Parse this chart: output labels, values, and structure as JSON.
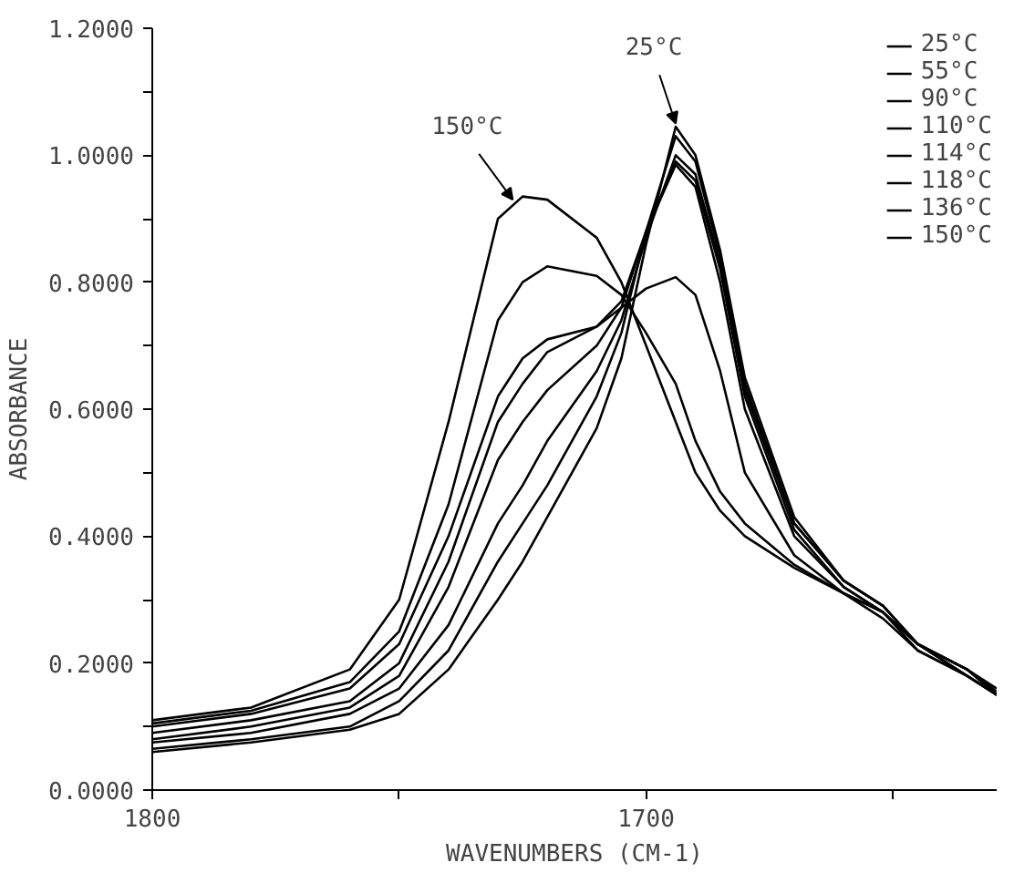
{
  "chart_data": {
    "type": "line",
    "xlabel": "WAVENUMBERS (CM-1)",
    "ylabel": "ABSORBANCE",
    "x": [
      1800,
      1780,
      1760,
      1750,
      1740,
      1730,
      1725,
      1720,
      1710,
      1705,
      1700,
      1694,
      1690,
      1685,
      1680,
      1670,
      1660,
      1652,
      1645,
      1635,
      1629
    ],
    "series": [
      {
        "name": "25°C",
        "color": "#000000",
        "values": [
          0.06,
          0.075,
          0.095,
          0.12,
          0.19,
          0.3,
          0.36,
          0.43,
          0.57,
          0.68,
          0.86,
          1.045,
          1.0,
          0.85,
          0.65,
          0.43,
          0.33,
          0.29,
          0.23,
          0.18,
          0.15
        ]
      },
      {
        "name": "55°C",
        "color": "#000000",
        "values": [
          0.065,
          0.08,
          0.1,
          0.14,
          0.22,
          0.36,
          0.42,
          0.48,
          0.62,
          0.72,
          0.88,
          1.03,
          0.99,
          0.84,
          0.64,
          0.42,
          0.33,
          0.29,
          0.23,
          0.19,
          0.15
        ]
      },
      {
        "name": "90°C",
        "color": "#000000",
        "values": [
          0.075,
          0.09,
          0.12,
          0.16,
          0.26,
          0.42,
          0.48,
          0.55,
          0.66,
          0.74,
          0.87,
          1.0,
          0.97,
          0.83,
          0.63,
          0.42,
          0.33,
          0.29,
          0.23,
          0.19,
          0.15
        ]
      },
      {
        "name": "110°C",
        "color": "#000000",
        "values": [
          0.08,
          0.1,
          0.13,
          0.18,
          0.32,
          0.52,
          0.58,
          0.63,
          0.7,
          0.76,
          0.88,
          0.99,
          0.96,
          0.82,
          0.62,
          0.41,
          0.32,
          0.28,
          0.22,
          0.18,
          0.15
        ]
      },
      {
        "name": "114°C",
        "color": "#000000",
        "values": [
          0.09,
          0.11,
          0.14,
          0.2,
          0.36,
          0.58,
          0.64,
          0.69,
          0.73,
          0.77,
          0.88,
          0.985,
          0.95,
          0.8,
          0.6,
          0.4,
          0.32,
          0.28,
          0.23,
          0.18,
          0.15
        ]
      },
      {
        "name": "118°C",
        "color": "#000000",
        "values": [
          0.1,
          0.12,
          0.16,
          0.23,
          0.4,
          0.62,
          0.68,
          0.71,
          0.73,
          0.76,
          0.79,
          0.808,
          0.78,
          0.66,
          0.5,
          0.37,
          0.31,
          0.27,
          0.22,
          0.18,
          0.15
        ]
      },
      {
        "name": "136°C",
        "color": "#000000",
        "values": [
          0.105,
          0.125,
          0.17,
          0.25,
          0.45,
          0.74,
          0.8,
          0.825,
          0.81,
          0.78,
          0.72,
          0.64,
          0.55,
          0.47,
          0.42,
          0.355,
          0.31,
          0.28,
          0.23,
          0.19,
          0.155
        ]
      },
      {
        "name": "150°C",
        "color": "#000000",
        "values": [
          0.11,
          0.13,
          0.19,
          0.3,
          0.58,
          0.9,
          0.935,
          0.93,
          0.87,
          0.8,
          0.7,
          0.58,
          0.5,
          0.44,
          0.4,
          0.35,
          0.31,
          0.28,
          0.23,
          0.19,
          0.16
        ]
      }
    ],
    "annotations": [
      {
        "text": "150°C",
        "x": 1727,
        "y": 0.93
      },
      {
        "text": "25°C",
        "x": 1694,
        "y": 1.05
      }
    ],
    "xlim": [
      1800,
      1629
    ],
    "xticks": [
      1800,
      {
        "value": 1750,
        "label": null
      },
      1700,
      {
        "value": 1650,
        "label": null
      }
    ],
    "ylim": [
      0,
      1.2
    ],
    "yticks": [
      {
        "value": 0,
        "label": "0.0000"
      },
      {
        "value": 0.1,
        "label": null
      },
      {
        "value": 0.2,
        "label": "0.2000"
      },
      {
        "value": 0.3,
        "label": null
      },
      {
        "value": 0.4,
        "label": "0.4000"
      },
      {
        "value": 0.5,
        "label": null
      },
      {
        "value": 0.6,
        "label": "0.6000"
      },
      {
        "value": 0.7,
        "label": null
      },
      {
        "value": 0.8,
        "label": "0.8000"
      },
      {
        "value": 0.9,
        "label": null
      },
      {
        "value": 1.0,
        "label": "1.0000"
      },
      {
        "value": 1.1,
        "label": null
      },
      {
        "value": 1.2,
        "label": "1.2000"
      }
    ],
    "grid": false,
    "legend": "top right",
    "marker": "none",
    "line_style": "solid"
  }
}
